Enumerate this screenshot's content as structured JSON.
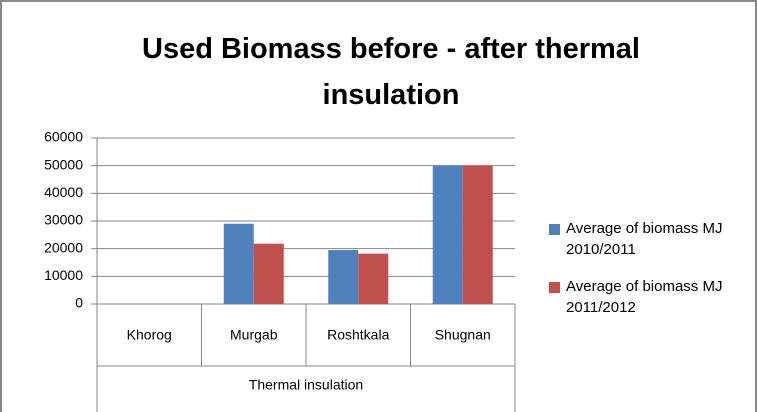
{
  "chart_data": {
    "type": "bar",
    "title": "Used Biomass before - after thermal insulation",
    "x_group_label": "Thermal insulation",
    "categories": [
      "Khorog",
      "Murgab",
      "Roshtkala",
      "Shugnan"
    ],
    "series": [
      {
        "name": "Average of biomass MJ 2010/2011",
        "color": "#4f81bd",
        "values": [
          null,
          29000,
          19500,
          50000
        ]
      },
      {
        "name": "Average of biomass MJ 2011/2012",
        "color": "#c0504d",
        "values": [
          null,
          21800,
          18200,
          50000
        ]
      }
    ],
    "ylim": [
      0,
      60000
    ],
    "yticks": [
      0,
      10000,
      20000,
      30000,
      40000,
      50000,
      60000
    ],
    "grid": true,
    "legend": "right"
  }
}
